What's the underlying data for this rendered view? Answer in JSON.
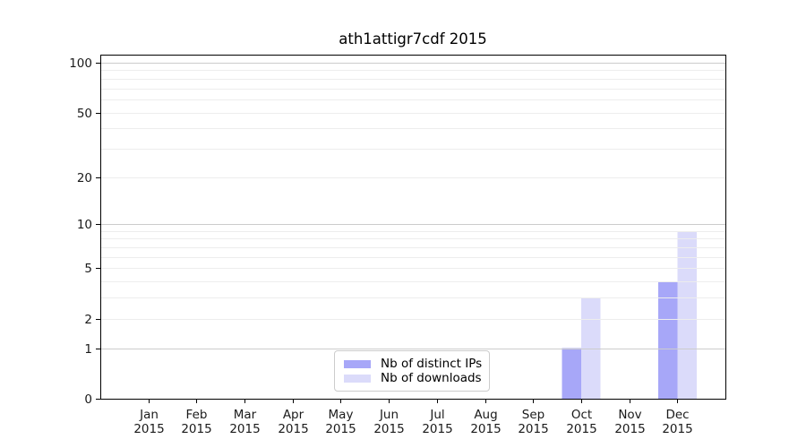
{
  "chart": {
    "title": "ath1attigr7cdf 2015"
  },
  "chart_data": {
    "type": "bar",
    "title": "ath1attigr7cdf 2015",
    "categories": [
      "Jan",
      "Feb",
      "Mar",
      "Apr",
      "May",
      "Jun",
      "Jul",
      "Aug",
      "Sep",
      "Oct",
      "Nov",
      "Dec"
    ],
    "year": "2015",
    "series": [
      {
        "name": "Nb of distinct IPs",
        "color": "#a7a7f8",
        "values": [
          0,
          0,
          0,
          0,
          0,
          0,
          0,
          0,
          0,
          1,
          0,
          4
        ]
      },
      {
        "name": "Nb of downloads",
        "color": "#dbdbfa",
        "values": [
          0,
          0,
          0,
          0,
          0,
          0,
          0,
          0,
          0,
          3,
          0,
          9
        ]
      }
    ],
    "xlabel": "",
    "ylabel": "",
    "y_axis": {
      "scale": "log1p",
      "ticks": [
        0,
        1,
        2,
        5,
        10,
        20,
        50,
        100
      ],
      "ylim": [
        0,
        112
      ]
    },
    "grid": {
      "major": [
        1,
        10,
        100
      ],
      "minor": [
        2,
        3,
        4,
        5,
        6,
        7,
        8,
        9,
        20,
        30,
        40,
        50,
        60,
        70,
        80,
        90
      ],
      "major_color": "#cccccc",
      "minor_color": "#ededed"
    },
    "legend_position": "lower center"
  }
}
